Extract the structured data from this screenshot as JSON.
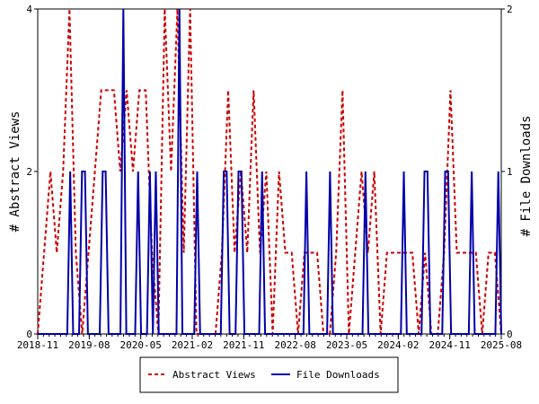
{
  "chart_data": {
    "type": "line",
    "x_ticks": [
      "2018-11",
      "2019-08",
      "2020-05",
      "2021-02",
      "2021-11",
      "2022-08",
      "2023-05",
      "2024-02",
      "2024-11",
      "2025-08"
    ],
    "y_left": {
      "label": "# Abstract Views",
      "ticks": [
        "0",
        "2",
        "4"
      ],
      "ylim": [
        0,
        4
      ]
    },
    "y_right": {
      "label": "# File Downloads",
      "ticks": [
        "0",
        "1",
        "2"
      ],
      "ylim": [
        0,
        2
      ]
    },
    "grid": false,
    "legend_position": "bottom",
    "series": [
      {
        "name": "Abstract Views",
        "axis": "left",
        "color": "#cc0000",
        "style": "dashed",
        "values": [
          0,
          1,
          2,
          1,
          2,
          4,
          1,
          0,
          1,
          2,
          3,
          3,
          3,
          2,
          3,
          2,
          3,
          3,
          1,
          0,
          4,
          2,
          4,
          1,
          4,
          0,
          0,
          0,
          0,
          1,
          3,
          1,
          2,
          1,
          3,
          1,
          2,
          0,
          2,
          1,
          1,
          0,
          1,
          1,
          1,
          0,
          0,
          1,
          3,
          0,
          1,
          2,
          1,
          2,
          0,
          1,
          1,
          1,
          1,
          1,
          0,
          1,
          0,
          0,
          1,
          3,
          1,
          1,
          1,
          1,
          0,
          1,
          1,
          0
        ]
      },
      {
        "name": "File Downloads",
        "axis": "right",
        "color": "#0000aa",
        "style": "solid",
        "values": [
          0,
          0,
          0,
          0,
          0,
          0,
          0,
          0,
          0,
          0,
          0,
          1,
          0,
          0,
          0,
          1,
          1,
          0,
          0,
          0,
          0,
          0,
          1,
          1,
          0,
          0,
          0,
          0,
          0,
          2,
          0,
          0,
          0,
          0,
          1,
          0,
          0,
          0,
          1,
          0,
          1,
          0,
          0,
          0,
          0,
          0,
          0,
          0,
          2,
          0,
          0,
          0,
          0,
          0,
          1,
          0,
          0,
          0,
          0,
          0,
          0,
          0,
          0,
          1,
          1,
          0,
          0,
          0,
          1,
          1,
          0,
          0,
          0,
          0,
          0,
          0,
          1,
          0,
          0,
          0,
          0,
          0,
          0,
          0,
          0,
          0,
          0,
          0,
          0,
          0,
          0,
          1,
          0,
          0,
          0,
          0,
          0,
          0,
          0,
          1,
          0,
          0,
          0,
          0,
          0,
          0,
          0,
          0,
          0,
          0,
          0,
          1,
          0,
          0,
          0,
          0,
          0,
          0,
          0,
          0,
          0,
          0,
          0,
          0,
          1,
          0,
          0,
          0,
          0,
          0,
          0,
          1,
          1,
          0,
          0,
          0,
          0,
          0,
          1,
          1,
          0,
          0,
          0,
          0,
          0,
          0,
          0,
          1,
          0,
          0,
          0,
          0,
          0,
          0,
          0,
          0,
          1,
          0
        ]
      }
    ]
  }
}
